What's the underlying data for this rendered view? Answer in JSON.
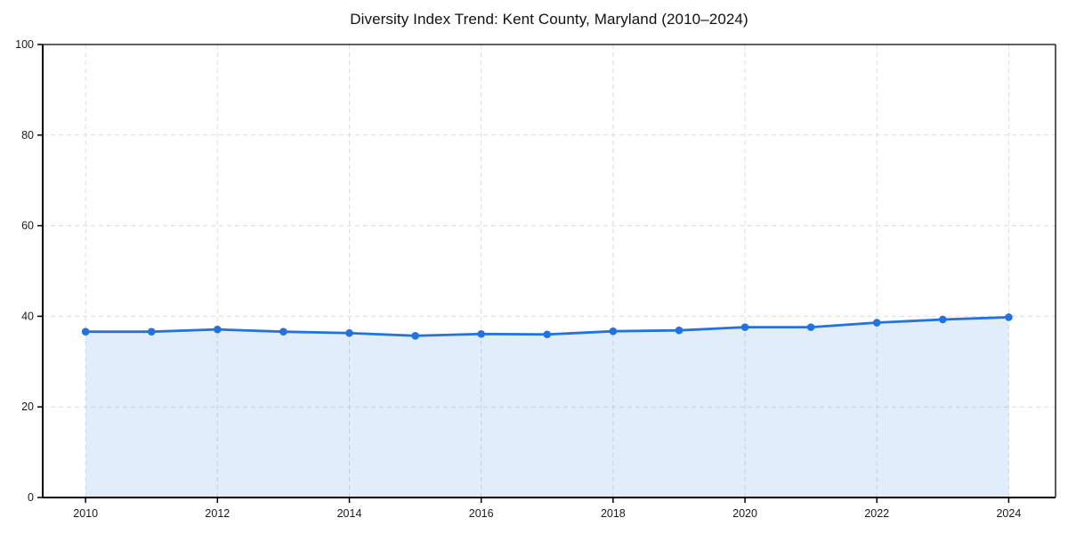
{
  "chart_data": {
    "type": "line",
    "title": "Diversity Index Trend: Kent County, Maryland (2010–2024)",
    "x": [
      2010,
      2011,
      2012,
      2013,
      2014,
      2015,
      2016,
      2017,
      2018,
      2019,
      2020,
      2021,
      2022,
      2023,
      2024
    ],
    "series": [
      {
        "name": "Diversity Index",
        "values": [
          36.6,
          36.6,
          37.1,
          36.6,
          36.3,
          35.7,
          36.1,
          36.0,
          36.7,
          36.9,
          37.6,
          37.6,
          38.6,
          39.3,
          39.8
        ]
      }
    ],
    "xlabel": "",
    "ylabel": "",
    "xlim": [
      2009.35,
      2024.71
    ],
    "ylim": [
      0,
      100
    ],
    "xticks": [
      2010,
      2012,
      2014,
      2016,
      2018,
      2020,
      2022,
      2024
    ],
    "yticks": [
      0,
      20,
      40,
      60,
      80,
      100
    ],
    "grid": true,
    "grid_style": "dashed",
    "legend": "none",
    "line_color": "#2272e0",
    "marker_color": "#2272e0",
    "fill_color": "rgba(34, 114, 224, 0.13)",
    "grid_color": "#dcdcdc",
    "axis_color": "#000000",
    "tick_label_color": "#1a1a1a",
    "background_color": "#ffffff"
  }
}
